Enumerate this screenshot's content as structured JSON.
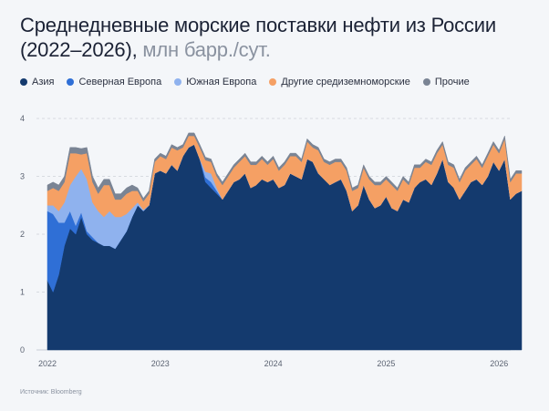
{
  "title": {
    "main": "Среднедневные морские поставки нефти из России (2022–2026),",
    "unit": "млн барр./сут."
  },
  "source": "Источник: Bloomberg",
  "chart_data": {
    "type": "area",
    "stacked": true,
    "title": "Среднедневные морские поставки нефти из России (2022–2026), млн барр./сут.",
    "xlabel": "",
    "ylabel": "",
    "ylim": [
      0,
      4
    ],
    "xlim": [
      2022.0,
      2026.2
    ],
    "yticks": [
      0,
      1,
      2,
      3,
      4
    ],
    "xticks": [
      "2022",
      "2023",
      "2024",
      "2025",
      "2026"
    ],
    "grid": true,
    "legend_position": "top",
    "x": [
      2022.0,
      2022.05,
      2022.1,
      2022.15,
      2022.2,
      2022.25,
      2022.3,
      2022.35,
      2022.4,
      2022.45,
      2022.5,
      2022.55,
      2022.6,
      2022.65,
      2022.7,
      2022.75,
      2022.8,
      2022.85,
      2022.9,
      2022.95,
      2023.0,
      2023.05,
      2023.1,
      2023.15,
      2023.2,
      2023.25,
      2023.3,
      2023.35,
      2023.4,
      2023.45,
      2023.5,
      2023.55,
      2023.6,
      2023.65,
      2023.7,
      2023.75,
      2023.8,
      2023.85,
      2023.9,
      2023.95,
      2024.0,
      2024.05,
      2024.1,
      2024.15,
      2024.2,
      2024.25,
      2024.3,
      2024.35,
      2024.4,
      2024.45,
      2024.5,
      2024.55,
      2024.6,
      2024.65,
      2024.7,
      2024.75,
      2024.8,
      2024.85,
      2024.9,
      2024.95,
      2025.0,
      2025.05,
      2025.1,
      2025.15,
      2025.2,
      2025.25,
      2025.3,
      2025.35,
      2025.4,
      2025.45,
      2025.5,
      2025.55,
      2025.6,
      2025.65,
      2025.7,
      2025.75,
      2025.8,
      2025.85,
      2025.9,
      2025.95,
      2026.0,
      2026.05,
      2026.1,
      2026.15,
      2026.2
    ],
    "series": [
      {
        "name": "Азия",
        "color": "#143a6e",
        "values": [
          1.2,
          1.0,
          1.3,
          1.8,
          2.1,
          2.0,
          2.3,
          2.0,
          1.9,
          1.85,
          1.8,
          1.8,
          1.75,
          1.9,
          2.05,
          2.3,
          2.5,
          2.4,
          2.5,
          3.05,
          3.1,
          3.05,
          3.2,
          3.1,
          3.35,
          3.5,
          3.55,
          3.3,
          2.9,
          2.8,
          2.7,
          2.6,
          2.75,
          2.9,
          2.95,
          3.05,
          2.8,
          2.85,
          2.95,
          2.9,
          2.95,
          2.8,
          2.85,
          3.05,
          3.0,
          2.95,
          3.3,
          3.25,
          3.05,
          2.95,
          2.85,
          2.9,
          2.95,
          2.75,
          2.4,
          2.5,
          2.85,
          2.6,
          2.45,
          2.5,
          2.65,
          2.45,
          2.4,
          2.6,
          2.55,
          2.8,
          2.9,
          2.95,
          2.85,
          3.05,
          3.3,
          2.9,
          2.8,
          2.6,
          2.75,
          2.9,
          2.95,
          2.85,
          3.0,
          3.25,
          3.1,
          3.3,
          2.6,
          2.7,
          2.75
        ]
      },
      {
        "name": "Северная Европа",
        "color": "#2f6fd6",
        "values": [
          1.2,
          1.35,
          0.9,
          0.4,
          0.3,
          0.15,
          0.08,
          0.05,
          0.05,
          0.0,
          0.0,
          0.0,
          0.0,
          0.0,
          0.0,
          0.0,
          0.0,
          0.0,
          0.0,
          0.0,
          0.0,
          0.0,
          0.0,
          0.0,
          0.0,
          0.0,
          0.0,
          0.0,
          0.08,
          0.1,
          0.05,
          0.0,
          0.0,
          0.0,
          0.0,
          0.0,
          0.0,
          0.0,
          0.0,
          0.0,
          0.0,
          0.0,
          0.0,
          0.0,
          0.0,
          0.0,
          0.0,
          0.0,
          0.0,
          0.0,
          0.0,
          0.0,
          0.0,
          0.0,
          0.0,
          0.0,
          0.0,
          0.0,
          0.0,
          0.0,
          0.0,
          0.0,
          0.0,
          0.0,
          0.0,
          0.0,
          0.0,
          0.0,
          0.0,
          0.0,
          0.0,
          0.0,
          0.0,
          0.0,
          0.0,
          0.0,
          0.0,
          0.0,
          0.0,
          0.0,
          0.0,
          0.0,
          0.0,
          0.0,
          0.0
        ]
      },
      {
        "name": "Южная Европа",
        "color": "#8fb2ee",
        "values": [
          0.1,
          0.15,
          0.2,
          0.35,
          0.45,
          0.85,
          0.75,
          0.9,
          0.6,
          0.55,
          0.5,
          0.6,
          0.55,
          0.4,
          0.3,
          0.15,
          0.05,
          0.02,
          0.0,
          0.0,
          0.0,
          0.0,
          0.0,
          0.0,
          0.0,
          0.0,
          0.0,
          0.0,
          0.1,
          0.15,
          0.05,
          0.0,
          0.0,
          0.0,
          0.0,
          0.0,
          0.0,
          0.0,
          0.0,
          0.0,
          0.0,
          0.0,
          0.0,
          0.0,
          0.0,
          0.0,
          0.0,
          0.0,
          0.0,
          0.0,
          0.0,
          0.0,
          0.0,
          0.0,
          0.0,
          0.0,
          0.0,
          0.0,
          0.0,
          0.0,
          0.0,
          0.0,
          0.0,
          0.0,
          0.0,
          0.0,
          0.0,
          0.0,
          0.0,
          0.0,
          0.0,
          0.0,
          0.0,
          0.0,
          0.0,
          0.0,
          0.0,
          0.0,
          0.0,
          0.0,
          0.0,
          0.0,
          0.0,
          0.0,
          0.0
        ]
      },
      {
        "name": "Другие средиземноморские",
        "color": "#f5a064",
        "values": [
          0.25,
          0.3,
          0.35,
          0.35,
          0.55,
          0.4,
          0.25,
          0.45,
          0.35,
          0.3,
          0.55,
          0.45,
          0.3,
          0.3,
          0.35,
          0.3,
          0.2,
          0.15,
          0.2,
          0.2,
          0.25,
          0.25,
          0.3,
          0.35,
          0.15,
          0.2,
          0.15,
          0.2,
          0.2,
          0.2,
          0.2,
          0.25,
          0.25,
          0.25,
          0.3,
          0.3,
          0.4,
          0.35,
          0.35,
          0.3,
          0.35,
          0.3,
          0.35,
          0.3,
          0.35,
          0.3,
          0.3,
          0.25,
          0.4,
          0.3,
          0.35,
          0.35,
          0.3,
          0.35,
          0.35,
          0.3,
          0.3,
          0.35,
          0.4,
          0.35,
          0.3,
          0.4,
          0.35,
          0.35,
          0.3,
          0.35,
          0.25,
          0.3,
          0.35,
          0.35,
          0.25,
          0.3,
          0.35,
          0.3,
          0.35,
          0.3,
          0.35,
          0.3,
          0.35,
          0.3,
          0.3,
          0.35,
          0.3,
          0.35,
          0.3
        ]
      },
      {
        "name": "Прочие",
        "color": "#7a8494",
        "values": [
          0.1,
          0.1,
          0.1,
          0.1,
          0.1,
          0.1,
          0.1,
          0.1,
          0.1,
          0.1,
          0.1,
          0.1,
          0.1,
          0.1,
          0.1,
          0.1,
          0.05,
          0.05,
          0.05,
          0.05,
          0.05,
          0.05,
          0.05,
          0.05,
          0.05,
          0.05,
          0.05,
          0.05,
          0.05,
          0.05,
          0.05,
          0.05,
          0.05,
          0.05,
          0.05,
          0.05,
          0.05,
          0.05,
          0.05,
          0.05,
          0.05,
          0.05,
          0.05,
          0.05,
          0.05,
          0.05,
          0.05,
          0.05,
          0.05,
          0.05,
          0.05,
          0.05,
          0.05,
          0.05,
          0.05,
          0.05,
          0.05,
          0.05,
          0.05,
          0.05,
          0.05,
          0.05,
          0.05,
          0.05,
          0.05,
          0.05,
          0.05,
          0.05,
          0.05,
          0.05,
          0.05,
          0.05,
          0.05,
          0.05,
          0.05,
          0.05,
          0.05,
          0.05,
          0.05,
          0.05,
          0.05,
          0.05,
          0.05,
          0.05,
          0.05
        ]
      }
    ]
  }
}
